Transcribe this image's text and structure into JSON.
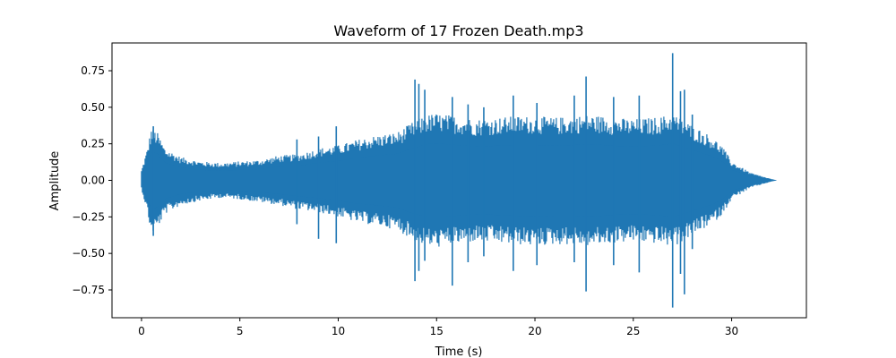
{
  "chart_data": {
    "type": "line",
    "title": "Waveform of 17 Frozen Death.mp3",
    "xlabel": "Time (s)",
    "ylabel": "Amplitude",
    "xlim": [
      -1.5,
      33.8
    ],
    "ylim": [
      -0.94,
      0.94
    ],
    "xticks": [
      0,
      5,
      10,
      15,
      20,
      25,
      30
    ],
    "xtick_labels": [
      "0",
      "5",
      "10",
      "15",
      "20",
      "25",
      "30"
    ],
    "yticks": [
      -0.75,
      -0.5,
      -0.25,
      0.0,
      0.25,
      0.5,
      0.75
    ],
    "ytick_labels": [
      "−0.75",
      "−0.50",
      "−0.25",
      "0.00",
      "0.25",
      "0.50",
      "0.75"
    ],
    "grid": false,
    "series": [
      {
        "name": "waveform",
        "color": "#1f77b4",
        "duration_s": 32.3,
        "envelope": {
          "t": [
            0.0,
            0.3,
            0.5,
            0.8,
            1.2,
            2.0,
            3.0,
            4.0,
            5.0,
            6.0,
            7.0,
            8.0,
            9.0,
            10.0,
            11.0,
            12.0,
            13.0,
            13.8,
            14.5,
            15.0,
            16.0,
            17.0,
            18.0,
            19.0,
            20.0,
            21.0,
            22.0,
            22.7,
            23.5,
            24.0,
            25.0,
            26.0,
            26.5,
            27.0,
            27.5,
            28.0,
            28.5,
            29.0,
            29.5,
            30.0,
            30.5,
            31.0,
            31.5,
            32.0,
            32.3
          ],
          "upper": [
            0.07,
            0.22,
            0.36,
            0.33,
            0.22,
            0.16,
            0.13,
            0.12,
            0.13,
            0.14,
            0.17,
            0.18,
            0.22,
            0.24,
            0.28,
            0.31,
            0.33,
            0.4,
            0.45,
            0.46,
            0.44,
            0.42,
            0.43,
            0.44,
            0.44,
            0.43,
            0.44,
            0.45,
            0.44,
            0.43,
            0.42,
            0.43,
            0.44,
            0.46,
            0.42,
            0.38,
            0.34,
            0.3,
            0.24,
            0.13,
            0.09,
            0.05,
            0.03,
            0.01,
            0.0
          ],
          "lower": [
            -0.06,
            -0.22,
            -0.37,
            -0.33,
            -0.23,
            -0.17,
            -0.14,
            -0.12,
            -0.13,
            -0.15,
            -0.17,
            -0.2,
            -0.22,
            -0.25,
            -0.29,
            -0.31,
            -0.34,
            -0.41,
            -0.45,
            -0.46,
            -0.44,
            -0.42,
            -0.43,
            -0.44,
            -0.45,
            -0.44,
            -0.44,
            -0.45,
            -0.44,
            -0.43,
            -0.42,
            -0.43,
            -0.44,
            -0.46,
            -0.42,
            -0.38,
            -0.34,
            -0.3,
            -0.24,
            -0.13,
            -0.09,
            -0.05,
            -0.03,
            -0.01,
            0.0
          ]
        },
        "peaks": [
          {
            "t": 0.6,
            "upper": 0.37,
            "lower": -0.38
          },
          {
            "t": 7.9,
            "upper": 0.28,
            "lower": -0.3
          },
          {
            "t": 9.0,
            "upper": 0.3,
            "lower": -0.4
          },
          {
            "t": 9.9,
            "upper": 0.37,
            "lower": -0.43
          },
          {
            "t": 13.9,
            "upper": 0.69,
            "lower": -0.69
          },
          {
            "t": 14.1,
            "upper": 0.66,
            "lower": -0.62
          },
          {
            "t": 14.4,
            "upper": 0.62,
            "lower": -0.55
          },
          {
            "t": 15.8,
            "upper": 0.57,
            "lower": -0.72
          },
          {
            "t": 16.6,
            "upper": 0.52,
            "lower": -0.56
          },
          {
            "t": 17.4,
            "upper": 0.5,
            "lower": -0.52
          },
          {
            "t": 18.9,
            "upper": 0.58,
            "lower": -0.62
          },
          {
            "t": 20.1,
            "upper": 0.53,
            "lower": -0.58
          },
          {
            "t": 22.0,
            "upper": 0.58,
            "lower": -0.56
          },
          {
            "t": 22.6,
            "upper": 0.71,
            "lower": -0.76
          },
          {
            "t": 24.0,
            "upper": 0.57,
            "lower": -0.58
          },
          {
            "t": 25.3,
            "upper": 0.58,
            "lower": -0.63
          },
          {
            "t": 27.0,
            "upper": 0.87,
            "lower": -0.87
          },
          {
            "t": 27.4,
            "upper": 0.61,
            "lower": -0.64
          },
          {
            "t": 27.6,
            "upper": 0.62,
            "lower": -0.78
          },
          {
            "t": 28.0,
            "upper": 0.45,
            "lower": -0.47
          }
        ]
      }
    ]
  }
}
